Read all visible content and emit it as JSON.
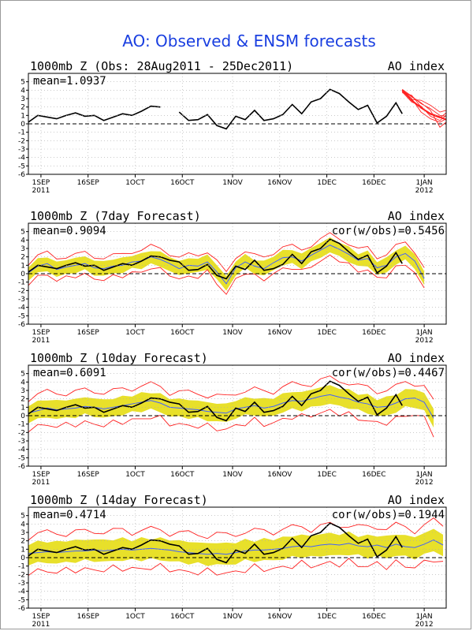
{
  "figure": {
    "title": "AO: Observed & ENSM forecasts",
    "title_color": "#1a3fe0"
  },
  "colors": {
    "observed": "#000000",
    "ens_member": "#ff2020",
    "spread": "#e8e02a",
    "ens_mean": "#4060ff",
    "grid": "#aaaaaa",
    "zero_line": "#000000"
  },
  "axes": {
    "y_ticks": [
      5,
      4,
      3,
      2,
      1,
      0,
      -1,
      -2,
      -3,
      -4,
      -5,
      -6
    ],
    "x_ticks": [
      {
        "date": "2011-09-01",
        "label": "1SEP",
        "sub": "2011"
      },
      {
        "date": "2011-09-16",
        "label": "16SEP",
        "sub": ""
      },
      {
        "date": "2011-10-01",
        "label": "1OCT",
        "sub": ""
      },
      {
        "date": "2011-10-16",
        "label": "16OCT",
        "sub": ""
      },
      {
        "date": "2011-11-01",
        "label": "1NOV",
        "sub": ""
      },
      {
        "date": "2011-11-16",
        "label": "16NOV",
        "sub": ""
      },
      {
        "date": "2011-12-01",
        "label": "1DEC",
        "sub": ""
      },
      {
        "date": "2011-12-16",
        "label": "16DEC",
        "sub": ""
      },
      {
        "date": "2012-01-01",
        "label": "1JAN",
        "sub": "2012"
      }
    ],
    "x_range": [
      "2011-08-28",
      "2012-01-08"
    ],
    "y_range": [
      -6,
      6
    ]
  },
  "chart_data": [
    {
      "type": "line",
      "title": "1000mb Z (Obs: 28Aug2011 - 25Dec2011)",
      "right_label": "AO index",
      "mean_label": "mean=1.0937",
      "cor_label": "",
      "observed": {
        "dates": [
          "2011-08-28",
          "2011-08-31",
          "2011-09-03",
          "2011-09-06",
          "2011-09-09",
          "2011-09-12",
          "2011-09-15",
          "2011-09-18",
          "2011-09-21",
          "2011-09-24",
          "2011-09-27",
          "2011-09-30",
          "2011-10-03",
          "2011-10-06",
          "2011-10-09",
          "2011-10-12",
          "2011-10-15",
          "2011-10-18",
          "2011-10-21",
          "2011-10-24",
          "2011-10-27",
          "2011-10-30",
          "2011-11-02",
          "2011-11-05",
          "2011-11-08",
          "2011-11-11",
          "2011-11-14",
          "2011-11-17",
          "2011-11-20",
          "2011-11-23",
          "2011-11-26",
          "2011-11-29",
          "2011-12-02",
          "2011-12-05",
          "2011-12-08",
          "2011-12-11",
          "2011-12-14",
          "2011-12-17",
          "2011-12-20",
          "2011-12-23",
          "2011-12-25"
        ],
        "values": [
          0.2,
          1.0,
          0.8,
          0.6,
          1.0,
          1.3,
          0.9,
          1.0,
          0.4,
          0.8,
          1.2,
          1.0,
          1.5,
          2.1,
          2.0,
          null,
          1.4,
          0.4,
          0.5,
          1.1,
          -0.2,
          -0.6,
          0.9,
          0.5,
          1.6,
          0.4,
          0.6,
          1.1,
          2.3,
          1.2,
          2.6,
          3.0,
          4.1,
          3.6,
          2.6,
          1.7,
          2.2,
          0.1,
          0.9,
          2.5,
          1.2
        ]
      },
      "members": {
        "dates": [
          "2011-12-25",
          "2011-12-28",
          "2011-12-31",
          "2012-01-03",
          "2012-01-06",
          "2012-01-08"
        ],
        "values": [
          [
            4.0,
            2.8,
            1.9,
            1.2,
            0.8,
            0.5
          ],
          [
            4.1,
            3.3,
            2.4,
            1.8,
            1.0,
            0.9
          ],
          [
            3.8,
            2.6,
            2.1,
            0.9,
            0.4,
            1.0
          ],
          [
            4.0,
            3.0,
            1.4,
            0.6,
            0.2,
            0.6
          ],
          [
            3.9,
            2.9,
            2.8,
            2.2,
            1.4,
            1.6
          ],
          [
            4.0,
            3.2,
            2.5,
            1.6,
            -0.4,
            0.2
          ],
          [
            3.7,
            3.4,
            2.0,
            1.1,
            0.7,
            1.3
          ]
        ]
      }
    },
    {
      "type": "line",
      "title": "1000mb Z (7day Forecast)",
      "right_label": "AO index",
      "mean_label": "mean=0.9094",
      "cor_label": "cor(w/obs)=0.5456",
      "observed": {
        "dates": [
          "2011-08-28",
          "2011-08-31",
          "2011-09-03",
          "2011-09-06",
          "2011-09-09",
          "2011-09-12",
          "2011-09-15",
          "2011-09-18",
          "2011-09-21",
          "2011-09-24",
          "2011-09-27",
          "2011-09-30",
          "2011-10-03",
          "2011-10-06",
          "2011-10-09",
          "2011-10-12",
          "2011-10-15",
          "2011-10-18",
          "2011-10-21",
          "2011-10-24",
          "2011-10-27",
          "2011-10-30",
          "2011-11-02",
          "2011-11-05",
          "2011-11-08",
          "2011-11-11",
          "2011-11-14",
          "2011-11-17",
          "2011-11-20",
          "2011-11-23",
          "2011-11-26",
          "2011-11-29",
          "2011-12-02",
          "2011-12-05",
          "2011-12-08",
          "2011-12-11",
          "2011-12-14",
          "2011-12-17",
          "2011-12-20",
          "2011-12-23",
          "2011-12-25"
        ],
        "values": [
          0.2,
          1.0,
          0.8,
          0.6,
          1.0,
          1.3,
          0.9,
          1.0,
          0.4,
          0.8,
          1.2,
          1.0,
          1.5,
          2.1,
          2.0,
          1.6,
          1.4,
          0.4,
          0.5,
          1.1,
          -0.2,
          -0.6,
          0.9,
          0.5,
          1.6,
          0.4,
          0.6,
          1.1,
          2.3,
          1.2,
          2.6,
          3.0,
          4.1,
          3.6,
          2.6,
          1.7,
          2.2,
          0.1,
          0.9,
          2.5,
          1.2
        ]
      },
      "ens_mean": {
        "dates": [
          "2011-08-28",
          "2011-08-31",
          "2011-09-03",
          "2011-09-06",
          "2011-09-09",
          "2011-09-12",
          "2011-09-15",
          "2011-09-18",
          "2011-09-21",
          "2011-09-24",
          "2011-09-27",
          "2011-09-30",
          "2011-10-03",
          "2011-10-06",
          "2011-10-09",
          "2011-10-12",
          "2011-10-15",
          "2011-10-18",
          "2011-10-21",
          "2011-10-24",
          "2011-10-27",
          "2011-10-30",
          "2011-11-02",
          "2011-11-05",
          "2011-11-08",
          "2011-11-11",
          "2011-11-14",
          "2011-11-17",
          "2011-11-20",
          "2011-11-23",
          "2011-11-26",
          "2011-11-29",
          "2011-12-02",
          "2011-12-05",
          "2011-12-08",
          "2011-12-11",
          "2011-12-14",
          "2011-12-17",
          "2011-12-20",
          "2011-12-23",
          "2011-12-26",
          "2011-12-29",
          "2012-01-01"
        ],
        "values": [
          0.1,
          0.9,
          1.2,
          0.5,
          0.8,
          1.0,
          1.2,
          0.7,
          0.6,
          0.9,
          1.0,
          1.4,
          1.5,
          2.0,
          1.7,
          1.2,
          0.6,
          1.0,
          0.9,
          1.4,
          0.2,
          -1.2,
          0.7,
          1.4,
          0.9,
          0.6,
          1.3,
          1.9,
          2.0,
          1.5,
          2.2,
          2.8,
          3.4,
          2.9,
          2.3,
          1.6,
          1.8,
          0.7,
          1.0,
          2.0,
          2.4,
          1.5,
          -0.6
        ]
      },
      "spread_halfwidth": 0.8,
      "member_halfwidth": 1.2
    },
    {
      "type": "line",
      "title": "1000mb Z (10day Forecast)",
      "right_label": "AO index",
      "mean_label": "mean=0.6091",
      "cor_label": "cor(w/obs)=0.4467",
      "observed": {
        "dates": [
          "2011-08-28",
          "2011-08-31",
          "2011-09-03",
          "2011-09-06",
          "2011-09-09",
          "2011-09-12",
          "2011-09-15",
          "2011-09-18",
          "2011-09-21",
          "2011-09-24",
          "2011-09-27",
          "2011-09-30",
          "2011-10-03",
          "2011-10-06",
          "2011-10-09",
          "2011-10-12",
          "2011-10-15",
          "2011-10-18",
          "2011-10-21",
          "2011-10-24",
          "2011-10-27",
          "2011-10-30",
          "2011-11-02",
          "2011-11-05",
          "2011-11-08",
          "2011-11-11",
          "2011-11-14",
          "2011-11-17",
          "2011-11-20",
          "2011-11-23",
          "2011-11-26",
          "2011-11-29",
          "2011-12-02",
          "2011-12-05",
          "2011-12-08",
          "2011-12-11",
          "2011-12-14",
          "2011-12-17",
          "2011-12-20",
          "2011-12-23",
          "2011-12-25"
        ],
        "values": [
          0.2,
          1.0,
          0.8,
          0.6,
          1.0,
          1.3,
          0.9,
          1.0,
          0.4,
          0.8,
          1.2,
          1.0,
          1.5,
          2.1,
          2.0,
          1.6,
          1.4,
          0.4,
          0.5,
          1.1,
          -0.2,
          -0.6,
          0.9,
          0.5,
          1.6,
          0.4,
          0.6,
          1.1,
          2.3,
          1.2,
          2.6,
          3.0,
          4.1,
          3.6,
          2.6,
          1.7,
          2.2,
          0.1,
          0.9,
          2.5,
          1.2
        ]
      },
      "ens_mean": {
        "dates": [
          "2011-08-28",
          "2011-08-31",
          "2011-09-03",
          "2011-09-06",
          "2011-09-09",
          "2011-09-12",
          "2011-09-15",
          "2011-09-18",
          "2011-09-21",
          "2011-09-24",
          "2011-09-27",
          "2011-09-30",
          "2011-10-03",
          "2011-10-06",
          "2011-10-09",
          "2011-10-12",
          "2011-10-15",
          "2011-10-18",
          "2011-10-21",
          "2011-10-24",
          "2011-10-27",
          "2011-10-30",
          "2011-11-02",
          "2011-11-05",
          "2011-11-08",
          "2011-11-11",
          "2011-11-14",
          "2011-11-17",
          "2011-11-20",
          "2011-11-23",
          "2011-11-26",
          "2011-11-29",
          "2011-12-02",
          "2011-12-05",
          "2011-12-08",
          "2011-12-11",
          "2011-12-14",
          "2011-12-17",
          "2011-12-20",
          "2011-12-23",
          "2011-12-26",
          "2011-12-29",
          "2012-01-01",
          "2012-01-04"
        ],
        "values": [
          0.3,
          0.6,
          0.9,
          0.7,
          0.8,
          0.9,
          1.1,
          1.0,
          0.8,
          1.0,
          1.2,
          1.4,
          1.6,
          1.8,
          1.5,
          1.0,
          0.9,
          0.8,
          0.7,
          0.5,
          0.4,
          0.3,
          0.8,
          1.0,
          1.2,
          0.9,
          1.1,
          1.5,
          1.8,
          1.7,
          2.0,
          2.3,
          2.5,
          2.2,
          2.0,
          1.6,
          1.4,
          1.0,
          1.1,
          1.5,
          2.0,
          2.1,
          1.6,
          -0.3
        ]
      },
      "spread_halfwidth": 1.0,
      "member_halfwidth": 1.8
    },
    {
      "type": "line",
      "title": "1000mb Z (14day Forecast)",
      "right_label": "AO index",
      "mean_label": "mean=0.4714",
      "cor_label": "cor(w/obs)=0.1944",
      "observed": {
        "dates": [
          "2011-08-28",
          "2011-08-31",
          "2011-09-03",
          "2011-09-06",
          "2011-09-09",
          "2011-09-12",
          "2011-09-15",
          "2011-09-18",
          "2011-09-21",
          "2011-09-24",
          "2011-09-27",
          "2011-09-30",
          "2011-10-03",
          "2011-10-06",
          "2011-10-09",
          "2011-10-12",
          "2011-10-15",
          "2011-10-18",
          "2011-10-21",
          "2011-10-24",
          "2011-10-27",
          "2011-10-30",
          "2011-11-02",
          "2011-11-05",
          "2011-11-08",
          "2011-11-11",
          "2011-11-14",
          "2011-11-17",
          "2011-11-20",
          "2011-11-23",
          "2011-11-26",
          "2011-11-29",
          "2011-12-02",
          "2011-12-05",
          "2011-12-08",
          "2011-12-11",
          "2011-12-14",
          "2011-12-17",
          "2011-12-20",
          "2011-12-23",
          "2011-12-25"
        ],
        "values": [
          0.2,
          1.0,
          0.8,
          0.6,
          1.0,
          1.3,
          0.9,
          1.0,
          0.4,
          0.8,
          1.2,
          1.0,
          1.5,
          2.1,
          2.0,
          1.6,
          1.4,
          0.4,
          0.5,
          1.1,
          -0.2,
          -0.6,
          0.9,
          0.5,
          1.6,
          0.4,
          0.6,
          1.1,
          2.3,
          1.2,
          2.6,
          3.0,
          4.1,
          3.6,
          2.6,
          1.7,
          2.2,
          0.1,
          0.9,
          2.5,
          1.2
        ]
      },
      "ens_mean": {
        "dates": [
          "2011-08-28",
          "2011-08-31",
          "2011-09-03",
          "2011-09-06",
          "2011-09-09",
          "2011-09-12",
          "2011-09-15",
          "2011-09-18",
          "2011-09-21",
          "2011-09-24",
          "2011-09-27",
          "2011-09-30",
          "2011-10-03",
          "2011-10-06",
          "2011-10-09",
          "2011-10-12",
          "2011-10-15",
          "2011-10-18",
          "2011-10-21",
          "2011-10-24",
          "2011-10-27",
          "2011-10-30",
          "2011-11-02",
          "2011-11-05",
          "2011-11-08",
          "2011-11-11",
          "2011-11-14",
          "2011-11-17",
          "2011-11-20",
          "2011-11-23",
          "2011-11-26",
          "2011-11-29",
          "2011-12-02",
          "2011-12-05",
          "2011-12-08",
          "2011-12-11",
          "2011-12-14",
          "2011-12-17",
          "2011-12-20",
          "2011-12-23",
          "2011-12-26",
          "2011-12-29",
          "2012-01-01",
          "2012-01-04",
          "2012-01-07"
        ],
        "values": [
          0.5,
          0.6,
          0.7,
          0.6,
          0.7,
          0.8,
          0.8,
          0.9,
          0.8,
          0.9,
          1.0,
          0.9,
          1.0,
          1.1,
          1.0,
          0.9,
          0.7,
          0.6,
          0.5,
          0.4,
          0.5,
          0.4,
          0.6,
          0.8,
          0.9,
          0.9,
          1.0,
          1.1,
          1.3,
          1.4,
          1.3,
          1.5,
          1.6,
          1.5,
          1.7,
          1.4,
          1.3,
          1.5,
          1.2,
          1.6,
          1.3,
          1.2,
          1.6,
          2.1,
          1.5
        ]
      },
      "spread_halfwidth": 1.2,
      "member_halfwidth": 2.1
    }
  ]
}
